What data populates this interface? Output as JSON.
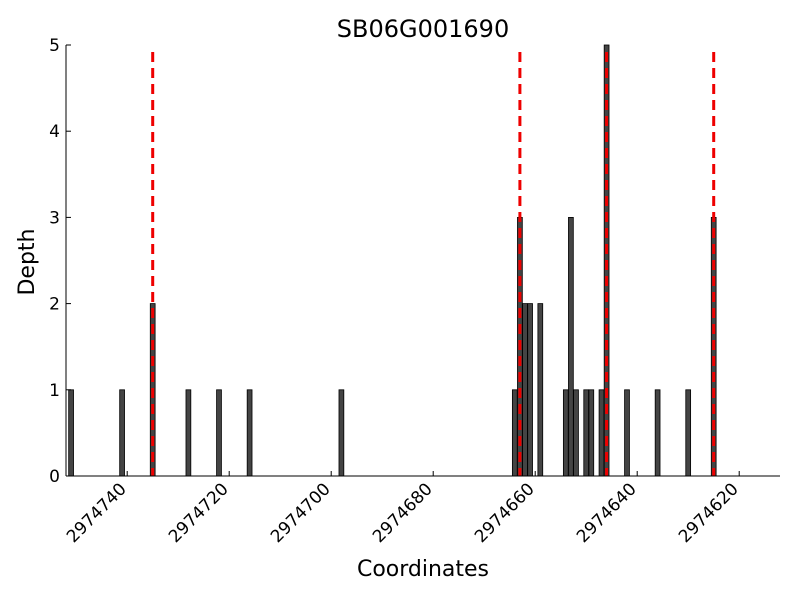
{
  "chart_data": {
    "type": "bar",
    "title": "SB06G001690",
    "xlabel": "Coordinates",
    "ylabel": "Depth",
    "xlim": [
      2974752,
      2974612
    ],
    "ylim": [
      0,
      5
    ],
    "x_inverted": true,
    "y_ticks": [
      "0",
      "1",
      "2",
      "3",
      "4",
      "5"
    ],
    "y_tick_values": [
      0,
      1,
      2,
      3,
      4,
      5
    ],
    "x_ticks": [
      "2974740",
      "2974720",
      "2974700",
      "2974680",
      "2974660",
      "2974640",
      "2974620"
    ],
    "x_tick_values": [
      2974740,
      2974720,
      2974700,
      2974680,
      2974660,
      2974640,
      2974620
    ],
    "bar_width": 1,
    "bars": [
      {
        "x": 2974751,
        "depth": 1
      },
      {
        "x": 2974741,
        "depth": 1
      },
      {
        "x": 2974735,
        "depth": 2
      },
      {
        "x": 2974728,
        "depth": 1
      },
      {
        "x": 2974722,
        "depth": 1
      },
      {
        "x": 2974716,
        "depth": 1
      },
      {
        "x": 2974698,
        "depth": 1
      },
      {
        "x": 2974664,
        "depth": 1
      },
      {
        "x": 2974663,
        "depth": 3
      },
      {
        "x": 2974662,
        "depth": 2
      },
      {
        "x": 2974661,
        "depth": 2
      },
      {
        "x": 2974659,
        "depth": 2
      },
      {
        "x": 2974654,
        "depth": 1
      },
      {
        "x": 2974653,
        "depth": 3
      },
      {
        "x": 2974652,
        "depth": 1
      },
      {
        "x": 2974650,
        "depth": 1
      },
      {
        "x": 2974649,
        "depth": 1
      },
      {
        "x": 2974647,
        "depth": 1
      },
      {
        "x": 2974646,
        "depth": 5
      },
      {
        "x": 2974642,
        "depth": 1
      },
      {
        "x": 2974636,
        "depth": 1
      },
      {
        "x": 2974630,
        "depth": 1
      },
      {
        "x": 2974625,
        "depth": 3
      }
    ],
    "reference_lines": [
      2974735,
      2974663,
      2974646,
      2974625
    ],
    "bar_color": "#444444",
    "reference_line_color": "#ee0000",
    "grid": false,
    "legend": "none"
  }
}
